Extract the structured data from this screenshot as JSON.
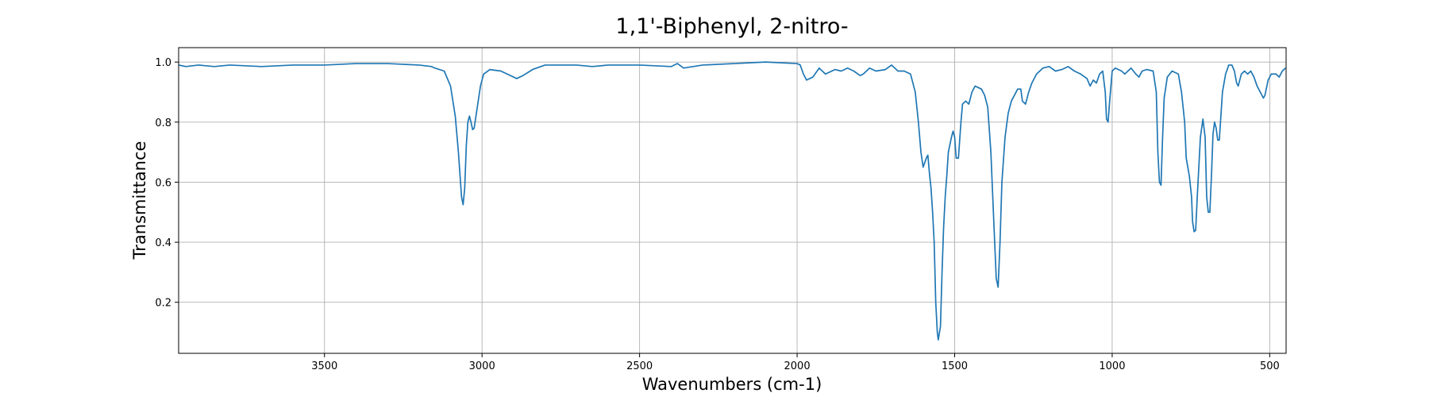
{
  "chart_data": {
    "type": "line",
    "title": "1,1'-Biphenyl, 2-nitro-",
    "x_label": "Wavenumbers (cm-1)",
    "y_label": "Transmittance",
    "color": "#1f77b4",
    "grid": true,
    "xlim": [
      3963,
      448
    ],
    "ylim": [
      0.03,
      1.048
    ],
    "xticks": [
      3500,
      3000,
      2500,
      2000,
      1500,
      1000,
      500
    ],
    "yticks": [
      0.2,
      0.4,
      0.6,
      0.8,
      {
        "value": 1,
        "label": "1.0"
      }
    ],
    "x": [
      3963,
      3940,
      3900,
      3850,
      3800,
      3700,
      3600,
      3500,
      3400,
      3300,
      3200,
      3160,
      3150,
      3120,
      3100,
      3085,
      3075,
      3065,
      3060,
      3055,
      3050,
      3045,
      3040,
      3035,
      3030,
      3025,
      3015,
      3005,
      2995,
      2975,
      2940,
      2910,
      2890,
      2870,
      2840,
      2800,
      2700,
      2650,
      2600,
      2500,
      2400,
      2380,
      2360,
      2300,
      2200,
      2100,
      2000,
      1990,
      1980,
      1970,
      1950,
      1930,
      1910,
      1880,
      1860,
      1840,
      1820,
      1800,
      1790,
      1770,
      1750,
      1720,
      1700,
      1680,
      1660,
      1640,
      1625,
      1615,
      1607,
      1600,
      1590,
      1585,
      1580,
      1575,
      1570,
      1565,
      1560,
      1555,
      1552,
      1545,
      1540,
      1535,
      1530,
      1525,
      1520,
      1510,
      1505,
      1500,
      1495,
      1488,
      1480,
      1475,
      1465,
      1455,
      1445,
      1435,
      1425,
      1415,
      1405,
      1395,
      1385,
      1375,
      1368,
      1362,
      1356,
      1350,
      1340,
      1330,
      1320,
      1310,
      1300,
      1290,
      1285,
      1275,
      1265,
      1255,
      1240,
      1220,
      1200,
      1180,
      1160,
      1140,
      1120,
      1100,
      1080,
      1070,
      1060,
      1050,
      1040,
      1030,
      1022,
      1018,
      1013,
      1008,
      1000,
      990,
      970,
      960,
      950,
      940,
      925,
      915,
      905,
      890,
      870,
      860,
      855,
      850,
      845,
      840,
      835,
      825,
      810,
      790,
      780,
      770,
      765,
      755,
      748,
      745,
      740,
      735,
      730,
      720,
      712,
      705,
      700,
      695,
      690,
      685,
      680,
      675,
      670,
      665,
      660,
      655,
      650,
      640,
      630,
      620,
      612,
      605,
      600,
      595,
      590,
      580,
      570,
      560,
      550,
      540,
      530,
      520,
      515,
      505,
      495,
      480,
      470,
      460,
      450
    ],
    "values": [
      0.99,
      0.985,
      0.99,
      0.985,
      0.99,
      0.985,
      0.99,
      0.99,
      0.995,
      0.995,
      0.99,
      0.985,
      0.98,
      0.97,
      0.92,
      0.82,
      0.7,
      0.55,
      0.525,
      0.58,
      0.72,
      0.8,
      0.82,
      0.8,
      0.775,
      0.78,
      0.85,
      0.92,
      0.96,
      0.975,
      0.97,
      0.955,
      0.945,
      0.955,
      0.975,
      0.99,
      0.99,
      0.985,
      0.99,
      0.99,
      0.985,
      0.995,
      0.98,
      0.99,
      0.995,
      1.0,
      0.995,
      0.99,
      0.96,
      0.94,
      0.95,
      0.98,
      0.96,
      0.975,
      0.97,
      0.98,
      0.97,
      0.955,
      0.96,
      0.98,
      0.97,
      0.975,
      0.99,
      0.97,
      0.97,
      0.96,
      0.9,
      0.8,
      0.7,
      0.65,
      0.68,
      0.69,
      0.63,
      0.58,
      0.5,
      0.4,
      0.2,
      0.1,
      0.075,
      0.12,
      0.3,
      0.45,
      0.55,
      0.62,
      0.7,
      0.75,
      0.77,
      0.75,
      0.68,
      0.68,
      0.8,
      0.86,
      0.87,
      0.86,
      0.9,
      0.92,
      0.915,
      0.91,
      0.89,
      0.85,
      0.7,
      0.45,
      0.28,
      0.25,
      0.4,
      0.6,
      0.75,
      0.83,
      0.87,
      0.89,
      0.91,
      0.91,
      0.87,
      0.86,
      0.9,
      0.93,
      0.96,
      0.98,
      0.985,
      0.97,
      0.975,
      0.985,
      0.97,
      0.96,
      0.945,
      0.92,
      0.94,
      0.93,
      0.96,
      0.97,
      0.9,
      0.81,
      0.8,
      0.87,
      0.97,
      0.98,
      0.97,
      0.96,
      0.97,
      0.98,
      0.96,
      0.95,
      0.97,
      0.975,
      0.97,
      0.9,
      0.7,
      0.6,
      0.59,
      0.75,
      0.88,
      0.95,
      0.97,
      0.96,
      0.9,
      0.8,
      0.68,
      0.62,
      0.55,
      0.47,
      0.435,
      0.44,
      0.55,
      0.75,
      0.81,
      0.75,
      0.55,
      0.5,
      0.5,
      0.62,
      0.76,
      0.8,
      0.78,
      0.74,
      0.74,
      0.82,
      0.9,
      0.96,
      0.99,
      0.99,
      0.97,
      0.93,
      0.92,
      0.94,
      0.96,
      0.97,
      0.96,
      0.97,
      0.95,
      0.92,
      0.9,
      0.88,
      0.89,
      0.94,
      0.96,
      0.96,
      0.95,
      0.97,
      0.98
    ]
  }
}
